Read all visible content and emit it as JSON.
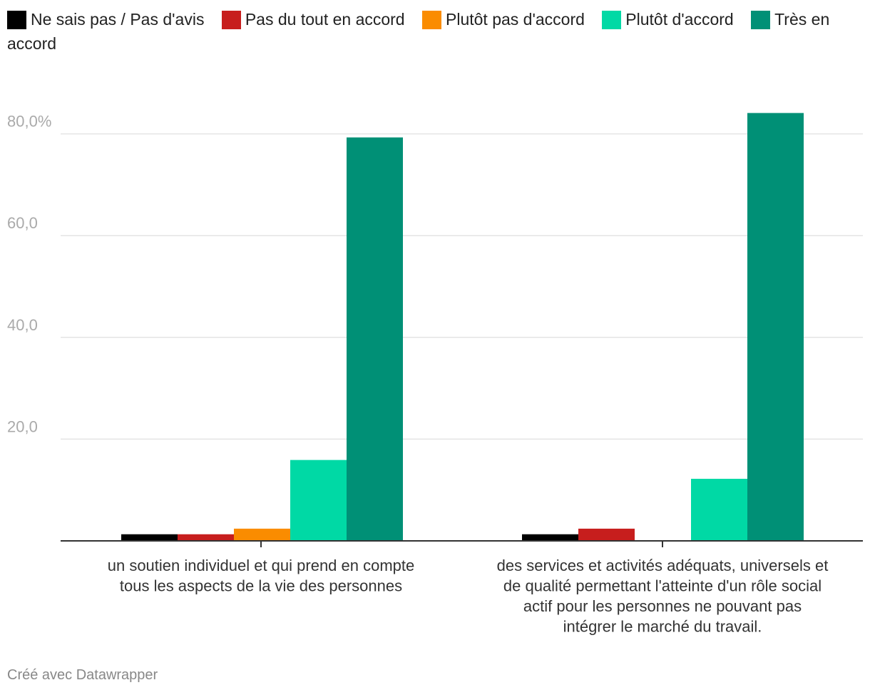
{
  "legend": [
    {
      "label": "Ne sais pas / Pas d'avis",
      "color": "#000000"
    },
    {
      "label": "Pas du tout en accord",
      "color": "#c71e1d"
    },
    {
      "label": "Plutôt pas d'accord",
      "color": "#fa8c00"
    },
    {
      "label": "Plutôt d'accord",
      "color": "#00d9a5"
    },
    {
      "label": "Très en accord",
      "color": "#009076"
    }
  ],
  "chart_data": {
    "type": "bar",
    "categories": [
      [
        "un soutien individuel et qui prend en compte",
        "tous les aspects de la vie des personnes"
      ],
      [
        "des services et activités adéquats, universels et",
        "de qualité permettant l'atteinte d'un rôle social",
        "actif pour les personnes ne pouvant pas",
        "intégrer le marché du travail."
      ]
    ],
    "series": [
      {
        "name": "Ne sais pas / Pas d'avis",
        "color": "#000000",
        "values": [
          1.3,
          1.3
        ]
      },
      {
        "name": "Pas du tout en accord",
        "color": "#c71e1d",
        "values": [
          1.3,
          2.4
        ]
      },
      {
        "name": "Plutôt pas d'accord",
        "color": "#fa8c00",
        "values": [
          2.4,
          0
        ]
      },
      {
        "name": "Plutôt d'accord",
        "color": "#00d9a5",
        "values": [
          15.9,
          12.2
        ]
      },
      {
        "name": "Très en accord",
        "color": "#009076",
        "values": [
          79.3,
          84.1
        ]
      }
    ],
    "yticks": [
      {
        "value": 20,
        "label": "20,0"
      },
      {
        "value": 40,
        "label": "40,0"
      },
      {
        "value": 60,
        "label": "60,0"
      },
      {
        "value": 80,
        "label": "80,0%"
      }
    ],
    "ylim": [
      0,
      88
    ],
    "grid": true,
    "legend_position": "top-left"
  },
  "footer": "Créé avec Datawrapper"
}
